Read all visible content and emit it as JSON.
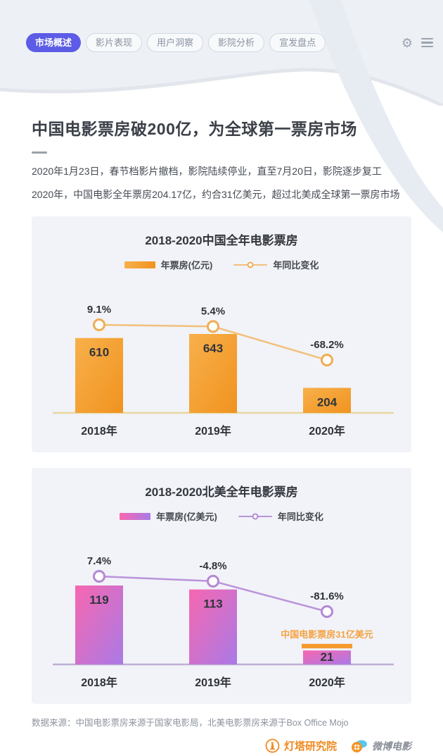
{
  "header": {
    "tabs": [
      {
        "label": "市场概述",
        "active": true
      },
      {
        "label": "影片表现",
        "active": false
      },
      {
        "label": "用户洞察",
        "active": false
      },
      {
        "label": "影院分析",
        "active": false
      },
      {
        "label": "宣发盘点",
        "active": false
      }
    ],
    "active_tab_color": "#5c5ce6"
  },
  "intro": {
    "title": "中国电影票房破200亿，为全球第一票房市场",
    "paragraphs": [
      "2020年1月23日，春节档影片撤档，影院陆续停业，直至7月20日，影院逐步复工",
      "2020年，中国电影全年票房204.17亿，约合31亿美元，超过北美成全球第一票房市场"
    ]
  },
  "chart_data": [
    {
      "type": "bar",
      "title": "2018-2020中国全年电影票房",
      "categories": [
        "2018年",
        "2019年",
        "2020年"
      ],
      "series": [
        {
          "name": "年票房(亿元)",
          "type": "bar",
          "values": [
            610,
            643,
            204
          ]
        },
        {
          "name": "年同比变化",
          "type": "line",
          "values": [
            9.1,
            5.4,
            -68.2
          ],
          "labels": [
            "9.1%",
            "5.4%",
            "-68.2%"
          ]
        }
      ],
      "legend_position": "top",
      "colors": {
        "bar_from": "#f8b04b",
        "bar_to": "#f0931f",
        "line": "#f2c07c",
        "marker_stroke": "#efad52",
        "axis": "#e9d6a0"
      }
    },
    {
      "type": "bar",
      "title": "2018-2020北美全年电影票房",
      "categories": [
        "2018年",
        "2019年",
        "2020年"
      ],
      "series": [
        {
          "name": "年票房(亿美元)",
          "type": "bar",
          "values": [
            119,
            113,
            21
          ]
        },
        {
          "name": "年同比变化",
          "type": "line",
          "values": [
            7.4,
            -4.8,
            -81.6
          ],
          "labels": [
            "7.4%",
            "-4.8%",
            "-81.6%"
          ]
        }
      ],
      "annotation": {
        "label": "中国电影票房31亿美元",
        "value": 31,
        "bar_color": "#f59a2e",
        "text_color": "#f5a343"
      },
      "legend_position": "top",
      "colors": {
        "bar_from": "#f767b0",
        "bar_to": "#a97ae6",
        "line": "#bb93da",
        "marker_stroke": "#b488d4",
        "axis": "#c0aed6"
      }
    }
  ],
  "footer": {
    "source": "数据来源：中国电影票房来源于国家电影局，北美电影票房来源于Box Office Mojo",
    "logos": [
      {
        "name": "灯塔研究院",
        "color": "#f0891f"
      },
      {
        "name": "微博电影",
        "color": "#8a8f99"
      }
    ]
  }
}
